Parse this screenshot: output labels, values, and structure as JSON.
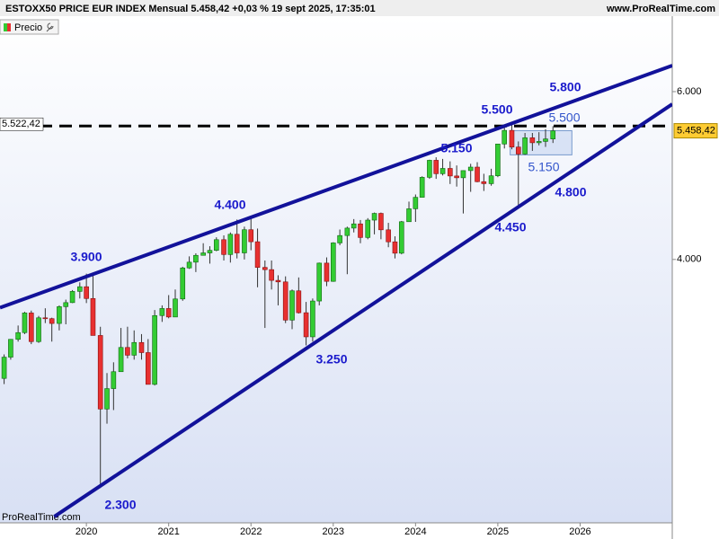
{
  "chart_data": {
    "type": "candlestick",
    "title": "ESTOXX50 PRICE EUR INDEX Mensual 5.458,42 +0,03 % 19 sept 2025, 17:35:01",
    "source": "www.ProRealTime.com",
    "watermark": "ProRealTime.com",
    "log_scale": true,
    "xlim": [
      2018.95,
      2027.12
    ],
    "xticks": [
      2020,
      2021,
      2022,
      2023,
      2024,
      2025,
      2026
    ],
    "ylim": [
      2117,
      7200
    ],
    "yticks": [
      {
        "value": 6000,
        "label": "6.000"
      },
      {
        "value": 4000,
        "label": "4.000"
      }
    ],
    "up_color": "#33cc33",
    "down_color": "#e83030",
    "series": [
      {
        "name": "Precio",
        "x": [
          2019,
          2019.08,
          2019.17,
          2019.25,
          2019.33,
          2019.42,
          2019.5,
          2019.58,
          2019.67,
          2019.75,
          2019.83,
          2019.92,
          2020,
          2020.08,
          2020.17,
          2020.25,
          2020.33,
          2020.42,
          2020.5,
          2020.58,
          2020.67,
          2020.75,
          2020.83,
          2020.92,
          2021,
          2021.08,
          2021.17,
          2021.25,
          2021.33,
          2021.42,
          2021.5,
          2021.58,
          2021.67,
          2021.75,
          2021.83,
          2021.92,
          2022,
          2022.08,
          2022.17,
          2022.25,
          2022.33,
          2022.42,
          2022.5,
          2022.58,
          2022.67,
          2022.75,
          2022.83,
          2022.92,
          2023,
          2023.08,
          2023.17,
          2023.25,
          2023.33,
          2023.42,
          2023.5,
          2023.58,
          2023.67,
          2023.75,
          2023.83,
          2023.92,
          2024,
          2024.08,
          2024.17,
          2024.25,
          2024.33,
          2024.42,
          2024.5,
          2024.58,
          2024.67,
          2024.75,
          2024.83,
          2024.92,
          2025,
          2025.08,
          2025.17,
          2025.25,
          2025.33,
          2025.42,
          2025.5,
          2025.58,
          2025.67
        ],
        "open": [
          3001,
          3159,
          3298,
          3352,
          3515,
          3280,
          3474,
          3467,
          3427,
          3569,
          3604,
          3703,
          3745,
          3640,
          3329,
          2787,
          2928,
          3050,
          3234,
          3174,
          3273,
          3194,
          2958,
          3493,
          3553,
          3481,
          3636,
          3919,
          3974,
          4040,
          4064,
          4089,
          4196,
          4048,
          4251,
          4064,
          4298,
          4175,
          3924,
          3903,
          3803,
          3789,
          3455,
          3708,
          3517,
          3318,
          3618,
          3965,
          3794,
          4163,
          4238,
          4315,
          4359,
          4218,
          4399,
          4471,
          4297,
          4174,
          4061,
          4382,
          4521,
          4648,
          4878,
          5083,
          4921,
          4984,
          4894,
          4873,
          4958,
          5000,
          4827,
          4804,
          4896,
          5287,
          5464,
          5248,
          5160,
          5367,
          5303,
          5320,
          5352
        ],
        "high": [
          3180,
          3300,
          3410,
          3525,
          3535,
          3490,
          3555,
          3475,
          3580,
          3630,
          3715,
          3785,
          3865,
          3867,
          3400,
          3040,
          3120,
          3390,
          3400,
          3370,
          3340,
          3300,
          3540,
          3580,
          3670,
          3720,
          3930,
          4030,
          4060,
          4160,
          4130,
          4220,
          4240,
          4270,
          4405,
          4330,
          4415,
          4310,
          3990,
          3990,
          3850,
          3840,
          3720,
          3830,
          3610,
          3640,
          3970,
          4020,
          4170,
          4300,
          4330,
          4410,
          4400,
          4420,
          4480,
          4480,
          4370,
          4230,
          4390,
          4600,
          4680,
          4890,
          5090,
          5120,
          5100,
          5070,
          5020,
          4960,
          5040,
          5060,
          4920,
          4980,
          5290,
          5530,
          5570,
          5320,
          5430,
          5430,
          5440,
          5480,
          5520
        ],
        "low": [
          2960,
          3140,
          3280,
          3340,
          3260,
          3270,
          3430,
          3280,
          3370,
          3420,
          3600,
          3640,
          3600,
          3330,
          2303,
          2690,
          2780,
          3050,
          3150,
          3140,
          3140,
          2960,
          2950,
          3440,
          3470,
          3480,
          3620,
          3910,
          3880,
          4040,
          3960,
          4080,
          3990,
          3970,
          4010,
          4000,
          4090,
          3740,
          3390,
          3720,
          3580,
          3430,
          3380,
          3510,
          3250,
          3280,
          3580,
          3750,
          3790,
          4140,
          3860,
          4270,
          4160,
          4200,
          4250,
          4200,
          4120,
          4010,
          4050,
          4380,
          4380,
          4650,
          4860,
          4860,
          4900,
          4800,
          4770,
          4470,
          4710,
          4820,
          4720,
          4780,
          4880,
          5230,
          5220,
          4540,
          5150,
          5200,
          5270,
          5250,
          5300
        ],
        "close": [
          3159,
          3298,
          3352,
          3515,
          3280,
          3474,
          3467,
          3427,
          3569,
          3604,
          3703,
          3745,
          3640,
          3329,
          2787,
          2928,
          3050,
          3234,
          3174,
          3273,
          3194,
          2958,
          3493,
          3553,
          3481,
          3636,
          3919,
          3974,
          4040,
          4064,
          4089,
          4196,
          4048,
          4251,
          4064,
          4298,
          4175,
          3924,
          3903,
          3803,
          3789,
          3455,
          3708,
          3517,
          3318,
          3618,
          3965,
          3794,
          4163,
          4238,
          4315,
          4359,
          4218,
          4399,
          4471,
          4297,
          4174,
          4061,
          4382,
          4521,
          4648,
          4878,
          5083,
          4921,
          4984,
          4894,
          4873,
          4958,
          5000,
          4827,
          4804,
          4896,
          5287,
          5464,
          5248,
          5160,
          5367,
          5303,
          5320,
          5352,
          5458
        ]
      }
    ],
    "hline": {
      "value": 5522.42,
      "label": "5.522,42"
    },
    "last_price": {
      "value": 5458.42,
      "label": "5.458,42"
    },
    "trendlines": [
      {
        "x": [
          2018.95,
          2027.12
        ],
        "y": [
          3560,
          6389
        ]
      },
      {
        "x": [
          2019.61,
          2027.12
        ],
        "y": [
          2149,
          5821
        ]
      }
    ],
    "box": {
      "x": [
        2025.15,
        2025.9
      ],
      "y": [
        5150,
        5460
      ]
    },
    "annotations": [
      {
        "text": "3.900",
        "bold": true
      },
      {
        "text": "4.400",
        "bold": true
      },
      {
        "text": "5.500",
        "bold": true
      },
      {
        "text": "5.800",
        "bold": true
      },
      {
        "text": "5.150",
        "bold": true
      },
      {
        "text": "5.500",
        "bold": false
      },
      {
        "text": "5.150",
        "bold": false
      },
      {
        "text": "4.800",
        "bold": true
      },
      {
        "text": "4.450",
        "bold": true
      },
      {
        "text": "3.250",
        "bold": true
      },
      {
        "text": "2.300",
        "bold": true
      }
    ]
  }
}
